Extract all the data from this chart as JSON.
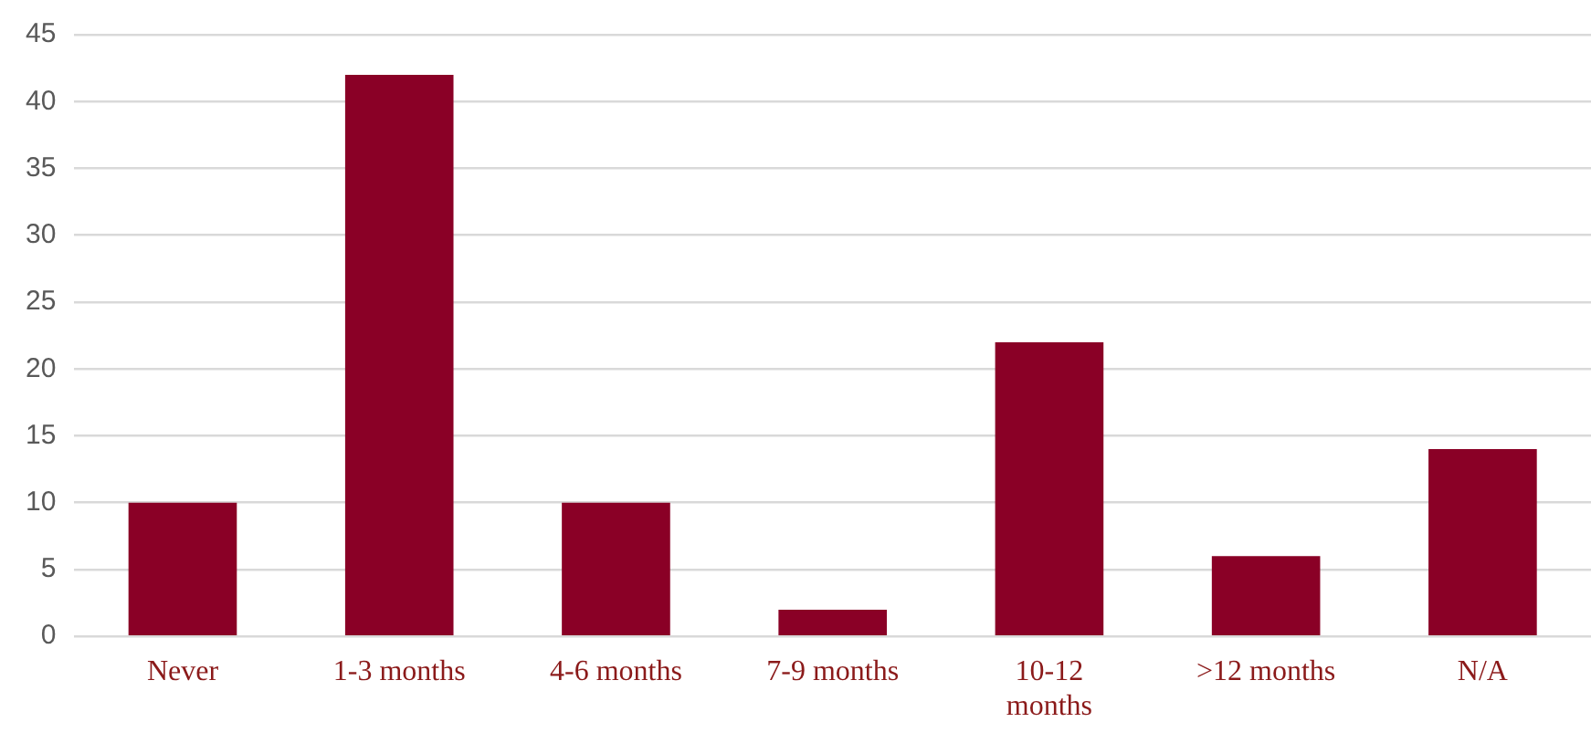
{
  "chart_data": {
    "type": "bar",
    "categories": [
      "Never",
      "1-3 months",
      "4-6 months",
      "7-9 months",
      "10-12 months",
      ">12 months",
      "N/A"
    ],
    "values": [
      10,
      42,
      10,
      2,
      22,
      6,
      14
    ],
    "color": "#8a0026",
    "ylim": [
      0,
      45
    ],
    "yticks": [
      0,
      5,
      10,
      15,
      20,
      25,
      30,
      35,
      40,
      45
    ],
    "grid": "y"
  }
}
